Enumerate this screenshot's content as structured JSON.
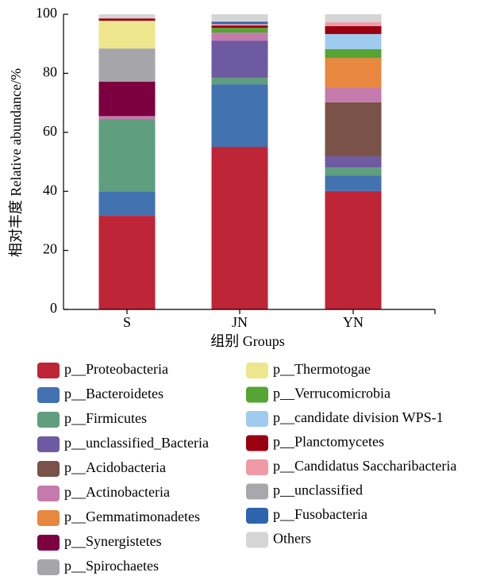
{
  "chart_data": {
    "type": "stacked-bar",
    "y_label": "相对丰度 Relative abundance/%",
    "x_label": "组别 Groups",
    "categories": [
      "S",
      "JN",
      "YN"
    ],
    "ylim": [
      0,
      100
    ],
    "yticks": [
      0,
      20,
      40,
      60,
      80,
      100
    ],
    "series": [
      {
        "name": "p__Proteobacteria",
        "color": "#be2536",
        "values": [
          31.7,
          55.1,
          40.1
        ]
      },
      {
        "name": "p__Bacteroidetes",
        "color": "#4272b0",
        "values": [
          8.3,
          21.2,
          5.3
        ]
      },
      {
        "name": "p__Firmicutes",
        "color": "#5f9e7e",
        "values": [
          24.5,
          2.2,
          2.7
        ]
      },
      {
        "name": "p__unclassified_Bacteria",
        "color": "#6e5aa0",
        "values": [
          0,
          12.6,
          3.8
        ]
      },
      {
        "name": "p__Acidobacteria",
        "color": "#7a5248",
        "values": [
          0,
          0,
          18.3
        ]
      },
      {
        "name": "p__Actinobacteria",
        "color": "#c57aae",
        "values": [
          1.0,
          2.7,
          4.8
        ]
      },
      {
        "name": "p__Gemmatimonadetes",
        "color": "#e8873f",
        "values": [
          0,
          0,
          10.2
        ]
      },
      {
        "name": "p__Synergistetes",
        "color": "#7c0040",
        "values": [
          11.7,
          0,
          0
        ]
      },
      {
        "name": "p__Spirochaetes",
        "color": "#a6a5aa",
        "values": [
          11.2,
          0,
          0
        ]
      },
      {
        "name": "p__Thermotogae",
        "color": "#eee68c",
        "values": [
          9.4,
          0,
          0
        ]
      },
      {
        "name": "p__Verrucomicrobia",
        "color": "#56a534",
        "values": [
          0,
          1.6,
          3.0
        ]
      },
      {
        "name": "p__candidate division WPS-1",
        "color": "#9fcbee",
        "values": [
          0,
          0,
          5.1
        ]
      },
      {
        "name": "p__Planctomycetes",
        "color": "#9a0010",
        "values": [
          0.8,
          0.8,
          2.7
        ]
      },
      {
        "name": "p__Candidatus Saccharibacteria",
        "color": "#ef9aa6",
        "values": [
          0,
          0.5,
          1.3
        ]
      },
      {
        "name": "p__unclassified",
        "color": "#a8a7ab",
        "values": [
          0,
          0,
          0
        ]
      },
      {
        "name": "p__Fusobacteria",
        "color": "#2e64ad",
        "values": [
          0,
          0.8,
          0
        ]
      },
      {
        "name": "Others",
        "color": "#d5d5d6",
        "values": [
          1.4,
          2.5,
          2.7
        ]
      }
    ]
  }
}
